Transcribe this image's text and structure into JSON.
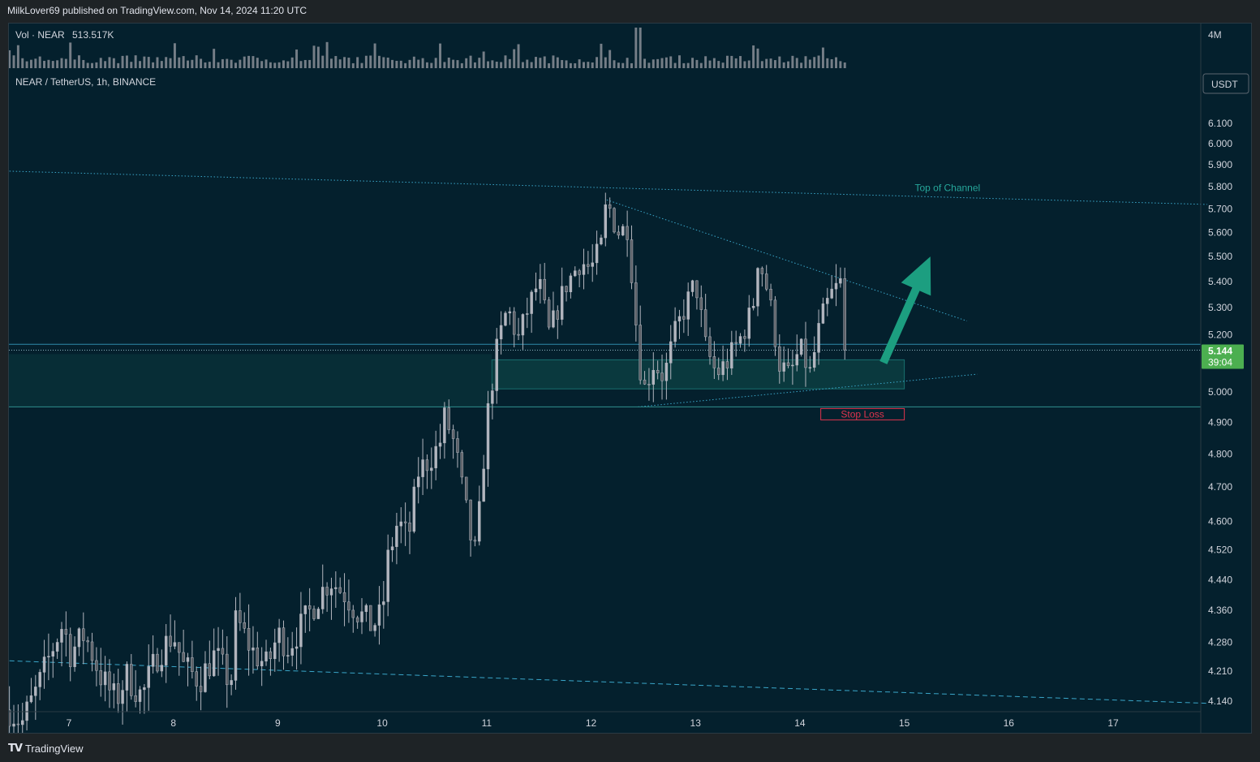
{
  "header": {
    "publisher_line": "MilkLover69 published on TradingView.com, Nov 14, 2024 11:20 UTC"
  },
  "footer": {
    "brand": "TradingView"
  },
  "colors": {
    "background": "#04202d",
    "candle": "#b2b5be",
    "volume": "#8a8f98",
    "trendline": "#3aa6c9",
    "zone_fill": "#0e4a4a",
    "zone_border": "#26a69a",
    "stop_loss": "#e0344d",
    "arrow": "#1c9e80",
    "price_tag": "#4caf50",
    "channel_label": "#26a69a"
  },
  "chart_data": {
    "type": "candlestick",
    "symbol_line": "NEAR / TetherUS, 1h, BINANCE",
    "volume_label": "Vol · NEAR",
    "volume_value": "513.517K",
    "volume_scale_label": "4M",
    "currency": "USDT",
    "current_price": "5.144",
    "countdown": "39:04",
    "y_ticks": [
      6.1,
      6.0,
      5.9,
      5.8,
      5.7,
      5.6,
      5.5,
      5.4,
      5.3,
      5.2,
      5.0,
      4.9,
      4.8,
      4.7,
      4.6,
      4.52,
      4.44,
      4.36,
      4.28,
      4.21,
      4.14
    ],
    "y_tick_labels": [
      "6.100",
      "6.000",
      "5.900",
      "5.800",
      "5.700",
      "5.600",
      "5.500",
      "5.400",
      "5.300",
      "5.200",
      "5.000",
      "4.900",
      "4.800",
      "4.700",
      "4.600",
      "4.520",
      "4.440",
      "4.360",
      "4.280",
      "4.210",
      "4.140"
    ],
    "x_ticks": [
      7,
      8,
      9,
      10,
      11,
      12,
      13,
      14,
      15,
      16,
      17
    ],
    "x_tick_labels": [
      "7",
      "8",
      "9",
      "10",
      "11",
      "12",
      "13",
      "14",
      "15",
      "16",
      "17"
    ],
    "x_range": [
      6.43,
      17.9
    ],
    "last_candle_x": 14.47,
    "price_path": [
      [
        6.43,
        4.12
      ],
      [
        6.55,
        4.09
      ],
      [
        6.7,
        4.17
      ],
      [
        6.85,
        4.27
      ],
      [
        6.95,
        4.33
      ],
      [
        7.0,
        4.25
      ],
      [
        7.15,
        4.3
      ],
      [
        7.3,
        4.2
      ],
      [
        7.45,
        4.14
      ],
      [
        7.55,
        4.2
      ],
      [
        7.7,
        4.15
      ],
      [
        7.85,
        4.25
      ],
      [
        8.0,
        4.3
      ],
      [
        8.1,
        4.22
      ],
      [
        8.25,
        4.19
      ],
      [
        8.4,
        4.25
      ],
      [
        8.55,
        4.18
      ],
      [
        8.6,
        4.34
      ],
      [
        8.75,
        4.26
      ],
      [
        8.9,
        4.22
      ],
      [
        9.0,
        4.3
      ],
      [
        9.1,
        4.27
      ],
      [
        9.25,
        4.33
      ],
      [
        9.4,
        4.4
      ],
      [
        9.5,
        4.44
      ],
      [
        9.65,
        4.4
      ],
      [
        9.75,
        4.36
      ],
      [
        9.9,
        4.32
      ],
      [
        10.0,
        4.35
      ],
      [
        10.05,
        4.49
      ],
      [
        10.15,
        4.6
      ],
      [
        10.25,
        4.55
      ],
      [
        10.35,
        4.75
      ],
      [
        10.45,
        4.78
      ],
      [
        10.55,
        4.83
      ],
      [
        10.6,
        4.92
      ],
      [
        10.7,
        4.82
      ],
      [
        10.75,
        4.72
      ],
      [
        10.85,
        4.55
      ],
      [
        10.9,
        4.5
      ],
      [
        11.0,
        4.9
      ],
      [
        11.1,
        5.15
      ],
      [
        11.2,
        5.3
      ],
      [
        11.3,
        5.18
      ],
      [
        11.4,
        5.3
      ],
      [
        11.5,
        5.4
      ],
      [
        11.6,
        5.2
      ],
      [
        11.75,
        5.38
      ],
      [
        11.9,
        5.48
      ],
      [
        12.0,
        5.45
      ],
      [
        12.1,
        5.55
      ],
      [
        12.15,
        5.74
      ],
      [
        12.25,
        5.6
      ],
      [
        12.35,
        5.62
      ],
      [
        12.45,
        5.15
      ],
      [
        12.5,
        5.0
      ],
      [
        12.6,
        5.1
      ],
      [
        12.7,
        5.05
      ],
      [
        12.8,
        5.2
      ],
      [
        12.9,
        5.3
      ],
      [
        13.0,
        5.4
      ],
      [
        13.1,
        5.15
      ],
      [
        13.2,
        5.06
      ],
      [
        13.3,
        5.1
      ],
      [
        13.45,
        5.2
      ],
      [
        13.55,
        5.3
      ],
      [
        13.6,
        5.5
      ],
      [
        13.7,
        5.35
      ],
      [
        13.8,
        5.1
      ],
      [
        13.9,
        5.05
      ],
      [
        14.0,
        5.15
      ],
      [
        14.1,
        5.06
      ],
      [
        14.2,
        5.25
      ],
      [
        14.3,
        5.35
      ],
      [
        14.4,
        5.4
      ],
      [
        14.47,
        5.14
      ]
    ],
    "annotations": {
      "top_of_channel_label": "Top of Channel",
      "stop_loss_label": "Stop Loss",
      "channel_line": [
        [
          6.43,
          5.87
        ],
        [
          17.9,
          5.72
        ]
      ],
      "lower_channel_line": [
        [
          6.43,
          4.235
        ],
        [
          17.9,
          4.135
        ]
      ],
      "triangle_upper": [
        [
          12.15,
          5.74
        ],
        [
          15.6,
          5.25
        ]
      ],
      "triangle_lower": [
        [
          12.45,
          4.95
        ],
        [
          15.7,
          5.06
        ]
      ],
      "support_zone": {
        "x": [
          11.05,
          15.0
        ],
        "y": [
          5.01,
          5.11
        ]
      },
      "stop_level": 4.95,
      "stop_box_x": [
        14.2,
        15.0
      ],
      "price_line_1": 5.165,
      "price_line_2": 5.144,
      "arrow_from": [
        14.8,
        5.1
      ],
      "arrow_to": [
        15.25,
        5.5
      ]
    }
  }
}
